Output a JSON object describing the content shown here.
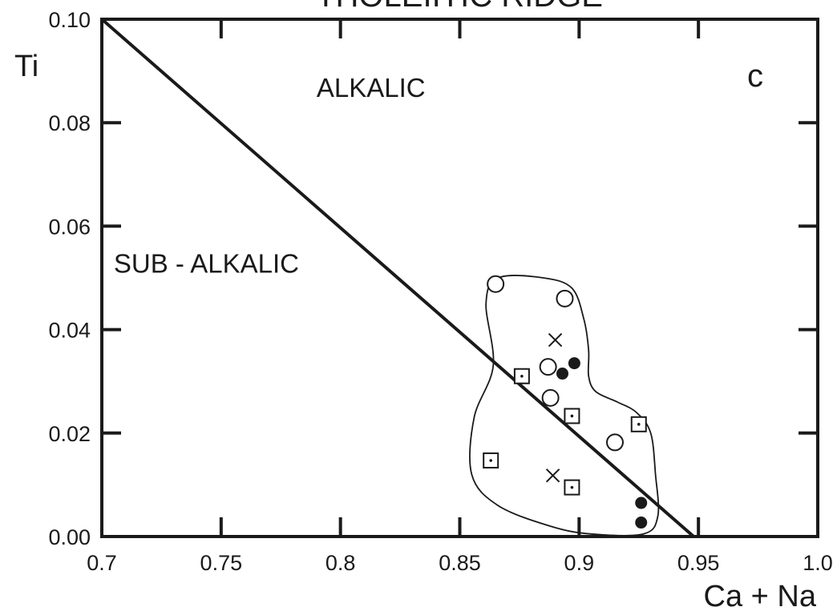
{
  "chart_data": {
    "type": "scatter",
    "title": "THOLEIITIC RIDGE",
    "panel_label": "c",
    "xlabel": "Ca + Na",
    "ylabel": "Ti",
    "xlim": [
      0.7,
      1.0
    ],
    "ylim": [
      0.0,
      0.1
    ],
    "x_ticks": [
      {
        "value": 0.7,
        "label": "0.7"
      },
      {
        "value": 0.75,
        "label": "0.75"
      },
      {
        "value": 0.8,
        "label": "0.8"
      },
      {
        "value": 0.85,
        "label": "0.85"
      },
      {
        "value": 0.9,
        "label": "0.9"
      },
      {
        "value": 0.95,
        "label": "0.95"
      },
      {
        "value": 1.0,
        "label": "1.0"
      }
    ],
    "y_ticks": [
      {
        "value": 0.0,
        "label": "0.00"
      },
      {
        "value": 0.02,
        "label": "0.02"
      },
      {
        "value": 0.04,
        "label": "0.04"
      },
      {
        "value": 0.06,
        "label": "0.06"
      },
      {
        "value": 0.08,
        "label": "0.08"
      },
      {
        "value": 0.1,
        "label": "0.10"
      }
    ],
    "grid": false,
    "regions": [
      {
        "label": "ALKALIC",
        "x": 0.79,
        "y": 0.085
      },
      {
        "label": "SUB - ALKALIC",
        "x": 0.705,
        "y": 0.051
      }
    ],
    "divider_line": [
      [
        0.7,
        0.1
      ],
      [
        0.948,
        0.0
      ]
    ],
    "envelope": [
      [
        0.866,
        0.05
      ],
      [
        0.885,
        0.05
      ],
      [
        0.897,
        0.048
      ],
      [
        0.902,
        0.042
      ],
      [
        0.904,
        0.036
      ],
      [
        0.904,
        0.031
      ],
      [
        0.907,
        0.028
      ],
      [
        0.916,
        0.026
      ],
      [
        0.924,
        0.024
      ],
      [
        0.93,
        0.02
      ],
      [
        0.932,
        0.012
      ],
      [
        0.933,
        0.004
      ],
      [
        0.927,
        0.0005
      ],
      [
        0.905,
        0.0005
      ],
      [
        0.888,
        0.002
      ],
      [
        0.866,
        0.006
      ],
      [
        0.855,
        0.012
      ],
      [
        0.856,
        0.023
      ],
      [
        0.864,
        0.033
      ],
      [
        0.861,
        0.045
      ]
    ],
    "series": [
      {
        "marker": "open-circle",
        "points": [
          [
            0.865,
            0.0488
          ],
          [
            0.894,
            0.046
          ],
          [
            0.887,
            0.0328
          ],
          [
            0.888,
            0.0268
          ],
          [
            0.915,
            0.0182
          ]
        ]
      },
      {
        "marker": "filled-circle",
        "points": [
          [
            0.893,
            0.0315
          ],
          [
            0.898,
            0.0335
          ],
          [
            0.926,
            0.0065
          ],
          [
            0.926,
            0.0027
          ]
        ]
      },
      {
        "marker": "dotted-square",
        "points": [
          [
            0.876,
            0.031
          ],
          [
            0.897,
            0.0233
          ],
          [
            0.925,
            0.0217
          ],
          [
            0.863,
            0.0147
          ],
          [
            0.897,
            0.0095
          ]
        ]
      },
      {
        "marker": "cross",
        "points": [
          [
            0.89,
            0.038
          ],
          [
            0.889,
            0.0118
          ]
        ]
      }
    ]
  }
}
